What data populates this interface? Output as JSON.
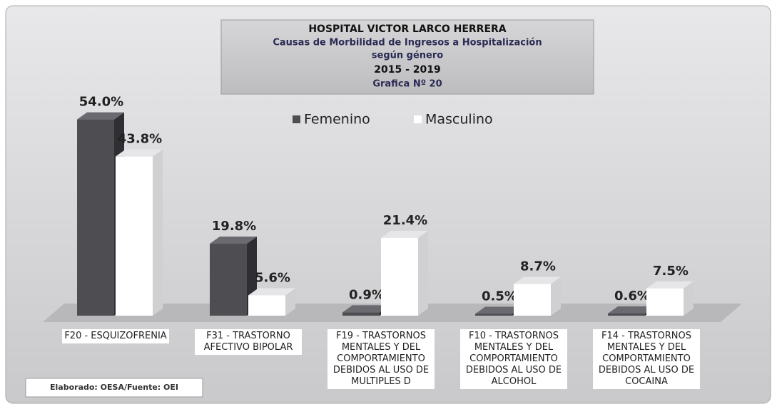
{
  "chart_data": {
    "type": "bar",
    "title": "HOSPITAL VICTOR LARCO HERRERA",
    "subtitle": [
      "Causas de Morbilidad de Ingresos a Hospitalización",
      "según género",
      "2015 - 2019",
      "Grafica Nº 20"
    ],
    "categories": [
      "F20 - ESQUIZOFRENIA",
      "F31 - TRASTORNO AFECTIVO BIPOLAR",
      "F19 - TRASTORNOS MENTALES Y DEL COMPORTAMIENTO DEBIDOS AL USO DE MULTIPLES D",
      "F10 - TRASTORNOS MENTALES Y DEL COMPORTAMIENTO DEBIDOS AL USO DE ALCOHOL",
      "F14 - TRASTORNOS MENTALES Y DEL COMPORTAMIENTO DEBIDOS AL USO DE COCAINA"
    ],
    "series": [
      {
        "name": "Femenino",
        "color": "#4d4d52",
        "values": [
          54.0,
          19.8,
          0.9,
          0.5,
          0.6
        ],
        "value_labels": [
          "54.0%",
          "19.8%",
          "0.9%",
          "0.5%",
          "0.6%"
        ]
      },
      {
        "name": "Masculino",
        "color": "#ffffff",
        "values": [
          43.8,
          5.6,
          21.4,
          8.7,
          7.5
        ],
        "value_labels": [
          "43.8%",
          "5.6%",
          "21.4%",
          "8.7%",
          "7.5%"
        ]
      }
    ],
    "source": "Elaborado: OESA/Fuente: OEI"
  }
}
